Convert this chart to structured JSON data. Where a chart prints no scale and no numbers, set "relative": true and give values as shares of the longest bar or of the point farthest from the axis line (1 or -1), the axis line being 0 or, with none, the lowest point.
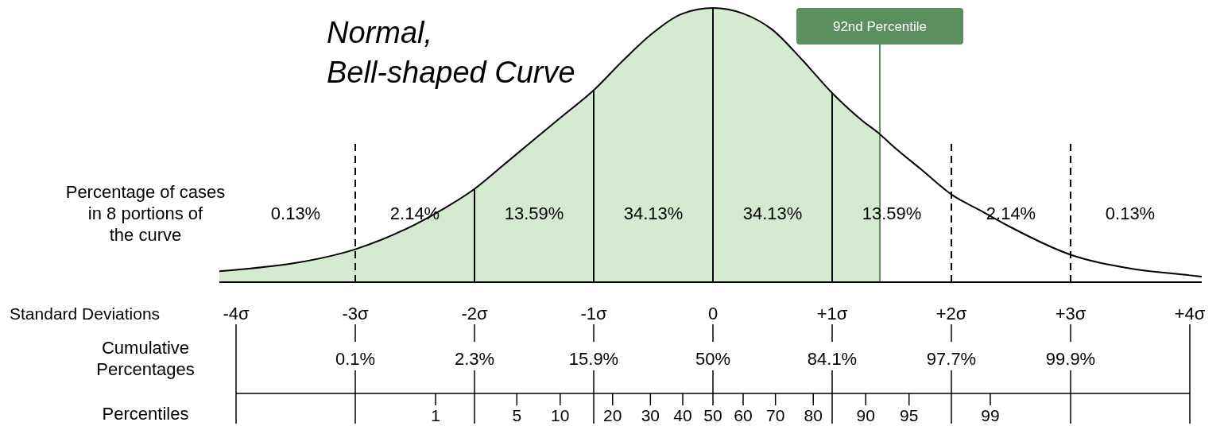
{
  "chart_data": {
    "type": "area",
    "title": "Normal, Bell-shaped Curve",
    "relative": true,
    "xlabel": "Standard Deviations",
    "xlim": [
      -4.14,
      4.1
    ],
    "xticks": [
      {
        "value": -4,
        "label": "-4σ"
      },
      {
        "value": -3,
        "label": "-3σ"
      },
      {
        "value": -2,
        "label": "-2σ"
      },
      {
        "value": -1,
        "label": "-1σ"
      },
      0,
      {
        "value": 1,
        "label": "+1σ"
      },
      {
        "value": 2,
        "label": "+2σ"
      },
      {
        "value": 3,
        "label": "+3σ"
      },
      {
        "value": 4,
        "label": "+4σ"
      }
    ],
    "series": [
      {
        "color": "#d4ebd0",
        "x": [
          -4.14,
          -4,
          -3.5,
          -3,
          -2.5,
          -2.25,
          -2,
          -1.75,
          -1.5,
          -1.25,
          -1,
          -0.75,
          -0.5,
          -0.25,
          0,
          0.25,
          0.5,
          0.75,
          1,
          1.25,
          1.4
        ],
        "values": [
          0.04,
          0.045,
          0.07,
          0.12,
          0.21,
          0.27,
          0.34,
          0.43,
          0.52,
          0.61,
          0.7,
          0.81,
          0.91,
          0.98,
          1,
          0.98,
          0.92,
          0.81,
          0.69,
          0.59,
          0.54
        ]
      },
      {
        "type": "line",
        "color": "#000000",
        "x": [
          -4.14,
          -4,
          -3.5,
          -3,
          -2.5,
          -2.25,
          -2,
          -1.75,
          -1.5,
          -1.25,
          -1,
          -0.75,
          -0.5,
          -0.25,
          0,
          0.25,
          0.5,
          0.75,
          1,
          1.25,
          1.4,
          1.5,
          1.75,
          2,
          2.25,
          2.5,
          3,
          3.5,
          4,
          4.1
        ],
        "values": [
          0.04,
          0.045,
          0.07,
          0.12,
          0.21,
          0.27,
          0.34,
          0.43,
          0.52,
          0.61,
          0.7,
          0.81,
          0.91,
          0.98,
          1,
          0.98,
          0.92,
          0.81,
          0.69,
          0.59,
          0.54,
          0.5,
          0.41,
          0.32,
          0.26,
          0.2,
          0.1,
          0.05,
          0.025,
          0.02
        ]
      }
    ],
    "ref_lines": [
      {
        "axis": "x",
        "value": -3,
        "line_style": "dashed",
        "color": "#000000"
      },
      {
        "axis": "x",
        "value": -2,
        "line_style": "solid",
        "color": "#000000"
      },
      {
        "axis": "x",
        "value": -1,
        "line_style": "solid",
        "color": "#000000"
      },
      {
        "axis": "x",
        "value": 0,
        "line_style": "solid",
        "color": "#000000"
      },
      {
        "axis": "x",
        "value": 1,
        "line_style": "solid",
        "color": "#000000"
      },
      {
        "axis": "x",
        "value": 2,
        "line_style": "dashed",
        "color": "#000000"
      },
      {
        "axis": "x",
        "value": 3,
        "line_style": "dashed",
        "color": "#000000"
      },
      {
        "axis": "x",
        "value": 1.4,
        "label": "92nd Percentile",
        "line_style": "solid",
        "color": "#5b8f5d"
      }
    ],
    "annotations": [
      "Percentage of cases in 8 portions of the curve",
      "0.13%",
      "2.14%",
      "13.59%",
      "34.13%",
      "34.13%",
      "13.59%",
      "2.14%",
      "0.13%",
      "Cumulative Percentages",
      {
        "text": "0.1%",
        "x": -3
      },
      {
        "text": "2.3%",
        "x": -2
      },
      {
        "text": "15.9%",
        "x": -1
      },
      {
        "text": "50%",
        "x": 0
      },
      {
        "text": "84.1%",
        "x": 1
      },
      {
        "text": "97.7%",
        "x": 2
      },
      {
        "text": "99.9%",
        "x": 3
      },
      "Percentiles",
      "1",
      "5",
      "10",
      "20",
      "30",
      "40",
      "50",
      "60",
      "70",
      "80",
      "90",
      "95",
      "99"
    ]
  }
}
